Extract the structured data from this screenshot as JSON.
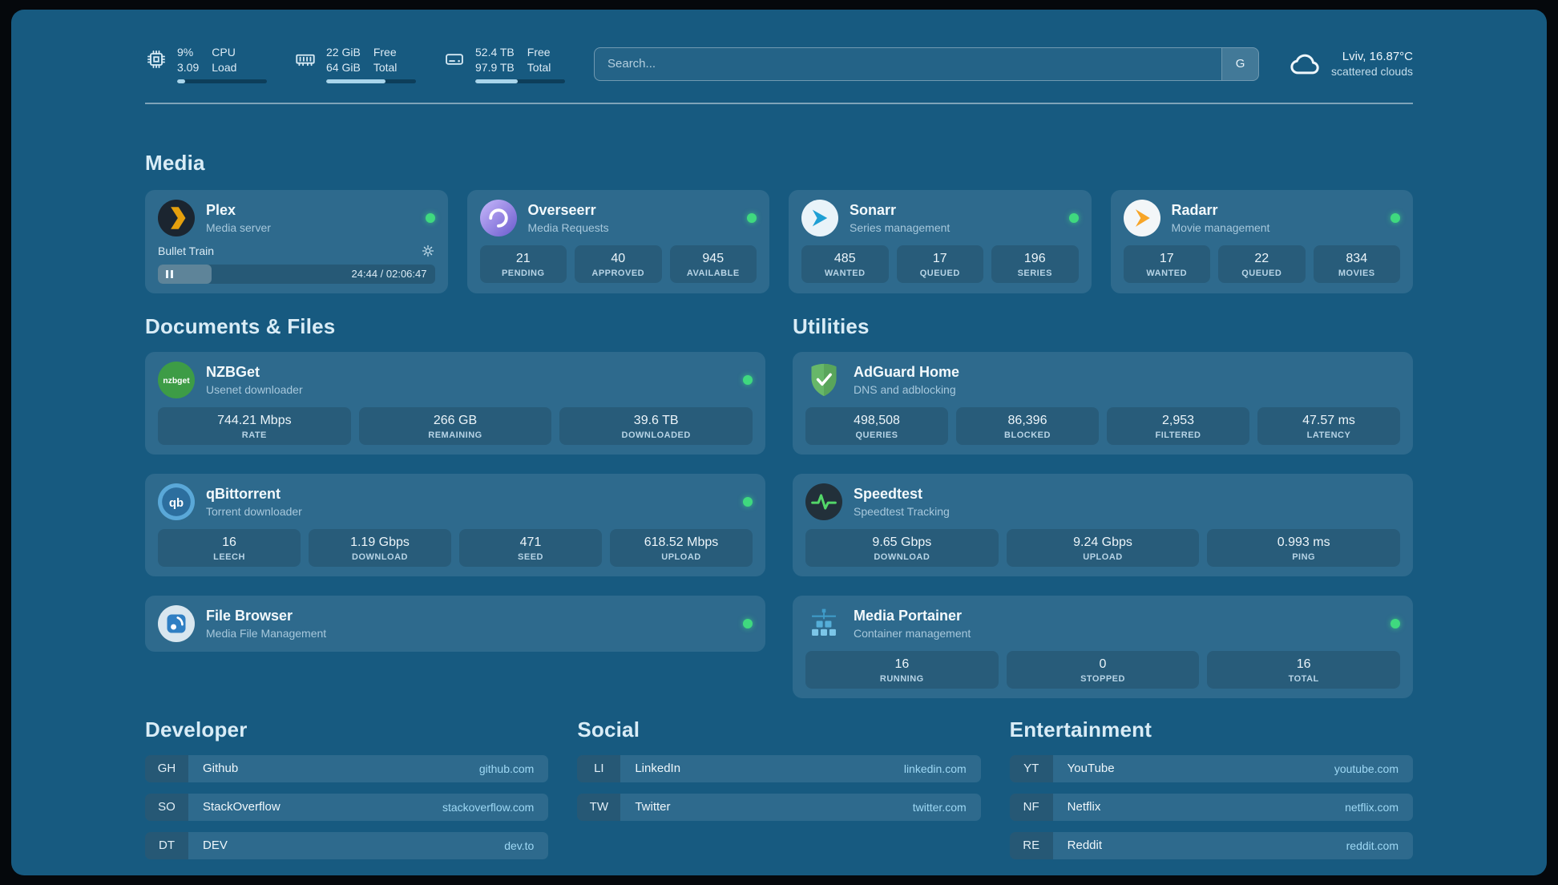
{
  "colors": {
    "status_online": "#3fd97f",
    "accent_link": "#9ed8f4",
    "background": "#175a80"
  },
  "topbar": {
    "resources": [
      {
        "icon": "cpu-icon",
        "value_top": "9%",
        "value_bottom": "3.09",
        "label_top": "CPU",
        "label_bottom": "Load",
        "percent": 9
      },
      {
        "icon": "memory-icon",
        "value_top": "22 GiB",
        "value_bottom": "64 GiB",
        "label_top": "Free",
        "label_bottom": "Total",
        "percent": 66
      },
      {
        "icon": "disk-icon",
        "value_top": "52.4 TB",
        "value_bottom": "97.9 TB",
        "label_top": "Free",
        "label_bottom": "Total",
        "percent": 47
      }
    ],
    "search": {
      "placeholder": "Search...",
      "provider": "G"
    },
    "weather": {
      "location": "Lviv, 16.87°C",
      "condition": "scattered clouds"
    }
  },
  "media": {
    "title": "Media",
    "plex": {
      "name": "Plex",
      "desc": "Media server",
      "now_playing": "Bullet Train",
      "time": "24:44 / 02:06:47",
      "progress_percent": 19.5,
      "online": true
    },
    "overseerr": {
      "name": "Overseerr",
      "desc": "Media Requests",
      "online": true,
      "stats": [
        {
          "value": "21",
          "label": "PENDING"
        },
        {
          "value": "40",
          "label": "APPROVED"
        },
        {
          "value": "945",
          "label": "AVAILABLE"
        }
      ]
    },
    "sonarr": {
      "name": "Sonarr",
      "desc": "Series management",
      "online": true,
      "stats": [
        {
          "value": "485",
          "label": "WANTED"
        },
        {
          "value": "17",
          "label": "QUEUED"
        },
        {
          "value": "196",
          "label": "SERIES"
        }
      ]
    },
    "radarr": {
      "name": "Radarr",
      "desc": "Movie management",
      "online": true,
      "stats": [
        {
          "value": "17",
          "label": "WANTED"
        },
        {
          "value": "22",
          "label": "QUEUED"
        },
        {
          "value": "834",
          "label": "MOVIES"
        }
      ]
    }
  },
  "documents": {
    "title": "Documents & Files",
    "nzbget": {
      "name": "NZBGet",
      "desc": "Usenet downloader",
      "online": true,
      "stats": [
        {
          "value": "744.21 Mbps",
          "label": "RATE"
        },
        {
          "value": "266 GB",
          "label": "REMAINING"
        },
        {
          "value": "39.6 TB",
          "label": "DOWNLOADED"
        }
      ]
    },
    "qbittorrent": {
      "name": "qBittorrent",
      "desc": "Torrent downloader",
      "online": true,
      "stats": [
        {
          "value": "16",
          "label": "LEECH"
        },
        {
          "value": "1.19 Gbps",
          "label": "DOWNLOAD"
        },
        {
          "value": "471",
          "label": "SEED"
        },
        {
          "value": "618.52 Mbps",
          "label": "UPLOAD"
        }
      ]
    },
    "filebrowser": {
      "name": "File Browser",
      "desc": "Media File Management",
      "online": true
    }
  },
  "utilities": {
    "title": "Utilities",
    "adguard": {
      "name": "AdGuard Home",
      "desc": "DNS and adblocking",
      "stats": [
        {
          "value": "498,508",
          "label": "QUERIES"
        },
        {
          "value": "86,396",
          "label": "BLOCKED"
        },
        {
          "value": "2,953",
          "label": "FILTERED"
        },
        {
          "value": "47.57 ms",
          "label": "LATENCY"
        }
      ]
    },
    "speedtest": {
      "name": "Speedtest",
      "desc": "Speedtest Tracking",
      "stats": [
        {
          "value": "9.65 Gbps",
          "label": "DOWNLOAD"
        },
        {
          "value": "9.24 Gbps",
          "label": "UPLOAD"
        },
        {
          "value": "0.993 ms",
          "label": "PING"
        }
      ]
    },
    "portainer": {
      "name": "Media Portainer",
      "desc": "Container management",
      "online": true,
      "stats": [
        {
          "value": "16",
          "label": "RUNNING"
        },
        {
          "value": "0",
          "label": "STOPPED"
        },
        {
          "value": "16",
          "label": "TOTAL"
        }
      ]
    }
  },
  "bookmarks": {
    "developer": {
      "title": "Developer",
      "items": [
        {
          "abbr": "GH",
          "name": "Github",
          "domain": "github.com"
        },
        {
          "abbr": "SO",
          "name": "StackOverflow",
          "domain": "stackoverflow.com"
        },
        {
          "abbr": "DT",
          "name": "DEV",
          "domain": "dev.to"
        }
      ]
    },
    "social": {
      "title": "Social",
      "items": [
        {
          "abbr": "LI",
          "name": "LinkedIn",
          "domain": "linkedin.com"
        },
        {
          "abbr": "TW",
          "name": "Twitter",
          "domain": "twitter.com"
        }
      ]
    },
    "entertainment": {
      "title": "Entertainment",
      "items": [
        {
          "abbr": "YT",
          "name": "YouTube",
          "domain": "youtube.com"
        },
        {
          "abbr": "NF",
          "name": "Netflix",
          "domain": "netflix.com"
        },
        {
          "abbr": "RE",
          "name": "Reddit",
          "domain": "reddit.com"
        }
      ]
    }
  }
}
